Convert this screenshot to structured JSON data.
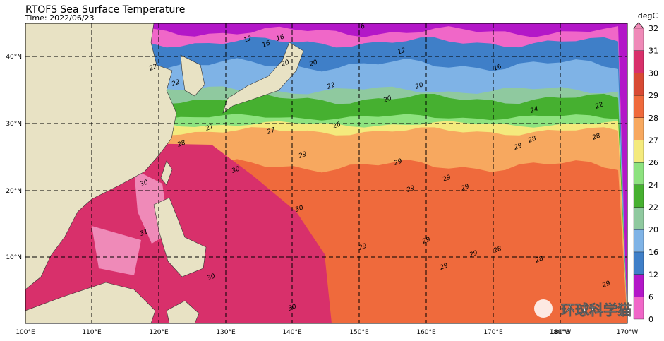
{
  "map": {
    "title": "RTOFS Sea Surface Temperature",
    "time": "Time: 2022/06/23",
    "lon_labels": [
      "100°E",
      "110°E",
      "120°E",
      "130°E",
      "140°E",
      "150°E",
      "160°E",
      "170°E",
      "180°E",
      "180°W",
      "170°W"
    ],
    "lat_labels": [
      "10°N",
      "20°N",
      "30°N",
      "40°N"
    ],
    "colorbar": {
      "unit": "degC",
      "labels": [
        "0",
        "6",
        "12",
        "16",
        "20",
        "22",
        "24",
        "26",
        "27",
        "28",
        "29",
        "30",
        "31",
        "32"
      ],
      "colors": [
        "#f3d6f3",
        "#f067c8",
        "#b317c8",
        "#3f7fc8",
        "#7fb3e6",
        "#8fc99f",
        "#46b030",
        "#8de27f",
        "#f4ea7d",
        "#f7a85f",
        "#ef6a3c",
        "#d84a34",
        "#d8306b",
        "#ef8ab8"
      ]
    },
    "contour_labels": [
      "12",
      "16",
      "16",
      "6",
      "12",
      "20",
      "20",
      "22",
      "22",
      "22",
      "20",
      "20",
      "16",
      "24",
      "22",
      "26",
      "27",
      "27",
      "28",
      "29",
      "29",
      "29",
      "29",
      "29",
      "28",
      "28",
      "29",
      "30",
      "30",
      "30",
      "31",
      "29",
      "29",
      "29",
      "28",
      "28",
      "29",
      "30",
      "30",
      "29"
    ],
    "watermark": "环球科学猫"
  }
}
